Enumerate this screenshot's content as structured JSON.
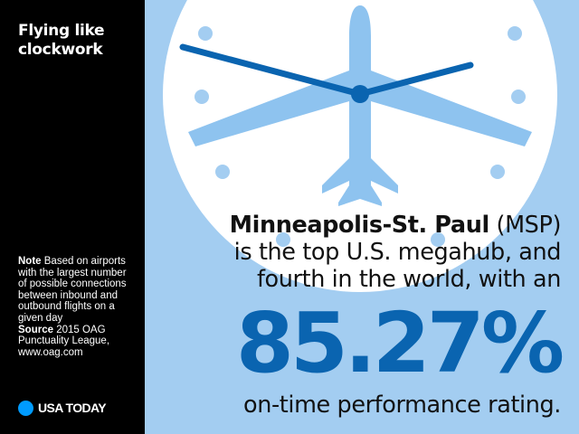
{
  "sidebar": {
    "title": "Flying like clockwork",
    "note_label": "Note",
    "note_text": "Based on airports with the largest number of possible connections between inbound and outbound flights on a given day",
    "source_label": "Source",
    "source_text": "2015 OAG Punctuality League, www.oag.com",
    "brand": "USA TODAY"
  },
  "headline": {
    "airport": "Minneapolis-St. Paul",
    "code": "(MSP)",
    "line2": "is the top U.S. megahub, and",
    "line3": "fourth in the world, with an"
  },
  "stat": {
    "value": "85.27%",
    "caption": "on-time performance rating."
  },
  "colors": {
    "background_light_blue": "#a3cdf1",
    "clock_face": "#ffffff",
    "plane": "#8ec3ef",
    "hands": "#0a64b0",
    "stat_blue": "#0a64b0",
    "brand_dot": "#009bff",
    "sidebar": "#000000"
  },
  "icons": [
    "clock-icon",
    "airplane-icon",
    "usa-today-dot-icon"
  ]
}
